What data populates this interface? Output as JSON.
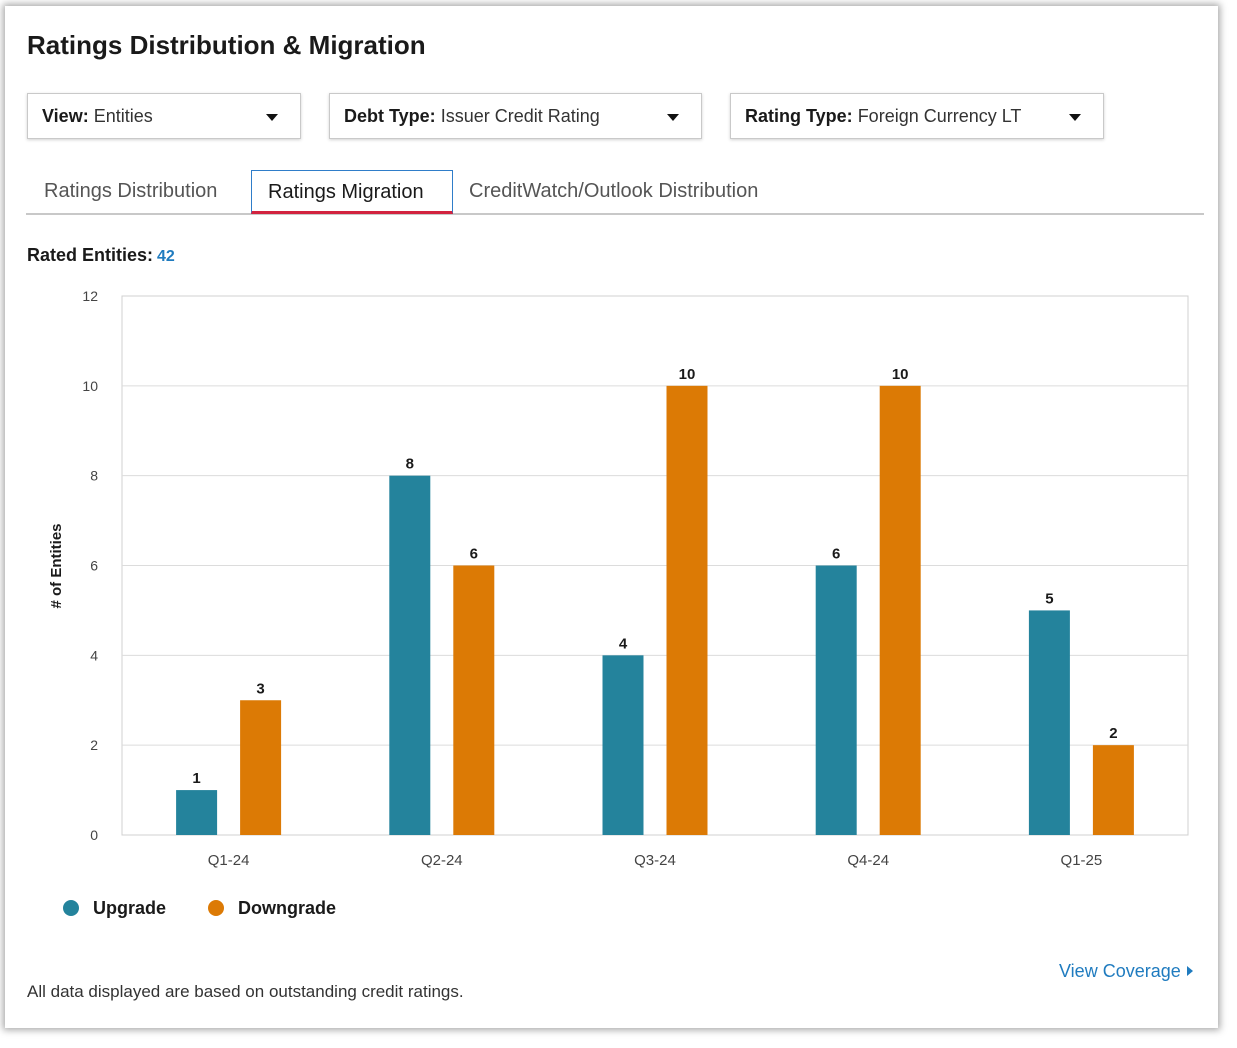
{
  "header": {
    "title": "Ratings Distribution & Migration"
  },
  "filters": [
    {
      "label": "View:",
      "value": "Entities"
    },
    {
      "label": "Debt Type:",
      "value": "Issuer Credit Rating"
    },
    {
      "label": "Rating Type:",
      "value": "Foreign Currency LT"
    }
  ],
  "tabs": [
    {
      "label": "Ratings Distribution",
      "active": false
    },
    {
      "label": "Ratings Migration",
      "active": true
    },
    {
      "label": "CreditWatch/Outlook Distribution",
      "active": false
    }
  ],
  "summary": {
    "label": "Rated Entities:",
    "value": "42"
  },
  "colors": {
    "upgrade": "#24839c",
    "downgrade": "#dc7a05",
    "link": "#1f7bbf",
    "active_tab_underline": "#d2233f"
  },
  "chart_data": {
    "type": "bar",
    "categories": [
      "Q1-24",
      "Q2-24",
      "Q3-24",
      "Q4-24",
      "Q1-25"
    ],
    "series": [
      {
        "name": "Upgrade",
        "values": [
          1,
          8,
          4,
          6,
          5
        ]
      },
      {
        "name": "Downgrade",
        "values": [
          3,
          6,
          10,
          10,
          2
        ]
      }
    ],
    "title": "",
    "xlabel": "",
    "ylabel": "# of Entities",
    "ylim": [
      0,
      12
    ],
    "yticks": [
      0,
      2,
      4,
      6,
      8,
      10,
      12
    ],
    "grid": true,
    "data_labels": true,
    "legend_position": "bottom-left"
  },
  "footer": {
    "note": "All data displayed are based on outstanding credit ratings.",
    "link_label": "View Coverage"
  }
}
